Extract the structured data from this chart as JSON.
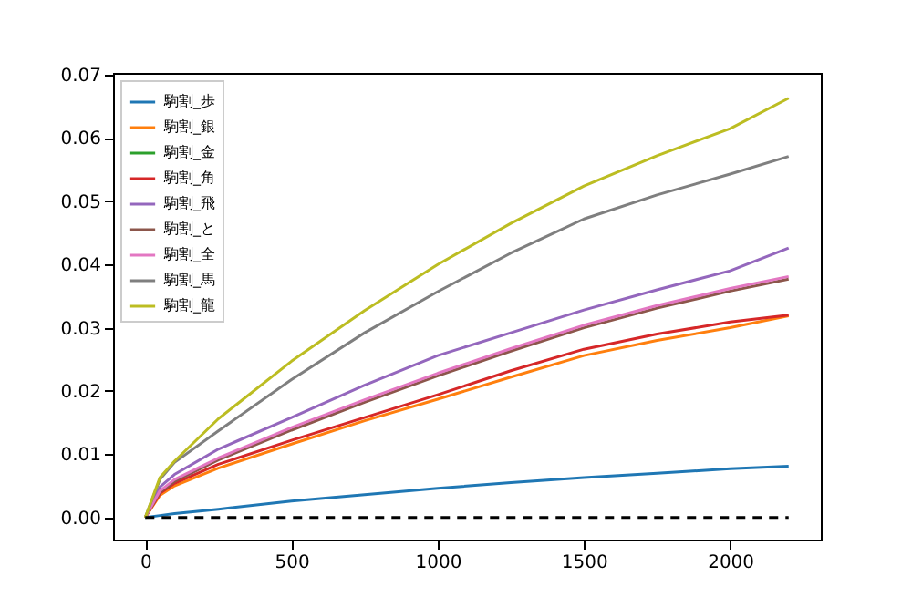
{
  "chart_data": {
    "type": "line",
    "x": [
      0,
      50,
      100,
      250,
      500,
      750,
      1000,
      1250,
      1500,
      1750,
      2000,
      2200
    ],
    "xlim": [
      -110,
      2310
    ],
    "xticks": [
      0,
      500,
      1000,
      1500,
      2000
    ],
    "ylim": [
      -0.0035,
      0.0703
    ],
    "yticks": [
      {
        "value": 0,
        "label": "0.00"
      },
      {
        "value": 0.01,
        "label": "0.01"
      },
      {
        "value": 0.02,
        "label": "0.02"
      },
      {
        "value": 0.03,
        "label": "0.03"
      },
      {
        "value": 0.04,
        "label": "0.04"
      },
      {
        "value": 0.05,
        "label": "0.05"
      },
      {
        "value": 0.06,
        "label": "0.06"
      },
      {
        "value": 0.07,
        "label": "0.07"
      }
    ],
    "grid": false,
    "legend": "top left",
    "marker": "none",
    "line_style": "solid",
    "series": [
      {
        "name": "駒割_歩",
        "color": "#1f77b4",
        "values": [
          0,
          0.0003,
          0.0006,
          0.0013,
          0.0026,
          0.0036,
          0.0046,
          0.0055,
          0.0063,
          0.007,
          0.0077,
          0.0081
        ]
      },
      {
        "name": "駒割_銀",
        "color": "#ff7f0e",
        "values": [
          0,
          0.0035,
          0.005,
          0.0078,
          0.0116,
          0.0153,
          0.0187,
          0.0222,
          0.0256,
          0.028,
          0.03,
          0.0319
        ]
      },
      {
        "name": "駒割_金",
        "color": "#2ca02c",
        "values": [
          null,
          null,
          null,
          null,
          null,
          null,
          null,
          null,
          null,
          null,
          null,
          null
        ]
      },
      {
        "name": "駒割_角",
        "color": "#d62728",
        "values": [
          0,
          0.0038,
          0.0054,
          0.0084,
          0.0122,
          0.0158,
          0.0194,
          0.0232,
          0.0266,
          0.029,
          0.0309,
          0.032
        ]
      },
      {
        "name": "駒割_飛",
        "color": "#9467bd",
        "values": [
          0,
          0.0048,
          0.0068,
          0.0108,
          0.0158,
          0.0209,
          0.0256,
          0.0292,
          0.0328,
          0.036,
          0.039,
          0.0426
        ]
      },
      {
        "name": "駒割_と",
        "color": "#8c564b",
        "values": [
          0,
          0.004,
          0.0057,
          0.0091,
          0.0138,
          0.0182,
          0.0224,
          0.0263,
          0.03,
          0.0331,
          0.0358,
          0.0377
        ]
      },
      {
        "name": "駒割_全",
        "color": "#e377c2",
        "values": [
          0,
          0.0042,
          0.006,
          0.0094,
          0.0142,
          0.0186,
          0.0228,
          0.0267,
          0.0304,
          0.0335,
          0.0362,
          0.0381
        ]
      },
      {
        "name": "駒割_馬",
        "color": "#7f7f7f",
        "values": [
          0,
          0.006,
          0.0087,
          0.0137,
          0.0218,
          0.0292,
          0.0357,
          0.0418,
          0.0472,
          0.051,
          0.0543,
          0.0571
        ]
      },
      {
        "name": "駒割_龍",
        "color": "#bcbd22",
        "values": [
          0,
          0.0063,
          0.0089,
          0.0156,
          0.0247,
          0.0327,
          0.04,
          0.0465,
          0.0524,
          0.0572,
          0.0615,
          0.0663
        ]
      },
      {
        "type": "line",
        "line_style": "dashed",
        "color": "#000000",
        "x": [
          0,
          2200
        ],
        "values": [
          0,
          0
        ]
      }
    ]
  }
}
